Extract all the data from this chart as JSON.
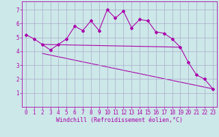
{
  "background_color": "#cce8e8",
  "grid_color": "#aaaacc",
  "line_color": "#aa00aa",
  "xlabel": "Windchill (Refroidissement éolien,°C)",
  "xlabel_color": "#aa00aa",
  "xlabel_fontsize": 6,
  "tick_color": "#aa00aa",
  "tick_fontsize": 5.5,
  "xlim": [
    -0.5,
    23.5
  ],
  "ylim": [
    0,
    7.6
  ],
  "yticks": [
    1,
    2,
    3,
    4,
    5,
    6,
    7
  ],
  "xticks": [
    0,
    1,
    2,
    3,
    4,
    5,
    6,
    7,
    8,
    9,
    10,
    11,
    12,
    13,
    14,
    15,
    16,
    17,
    18,
    19,
    20,
    21,
    22,
    23
  ],
  "series1_x": [
    0,
    1,
    2,
    3,
    4,
    5,
    6,
    7,
    8,
    9,
    10,
    11,
    12,
    13,
    14,
    15,
    16,
    17,
    18,
    19,
    20,
    21,
    22,
    23
  ],
  "series1_y": [
    5.2,
    4.9,
    4.5,
    4.1,
    4.5,
    4.9,
    5.8,
    5.5,
    6.2,
    5.5,
    7.0,
    6.4,
    6.9,
    5.7,
    6.3,
    6.2,
    5.4,
    5.3,
    4.9,
    4.3,
    3.2,
    2.3,
    2.0,
    1.3
  ],
  "series2_x": [
    2,
    19
  ],
  "series2_y": [
    4.5,
    4.3
  ],
  "series3_x": [
    2,
    23
  ],
  "series3_y": [
    3.85,
    1.3
  ],
  "marker_style": "D",
  "marker_size": 2.0,
  "line_width": 0.8
}
